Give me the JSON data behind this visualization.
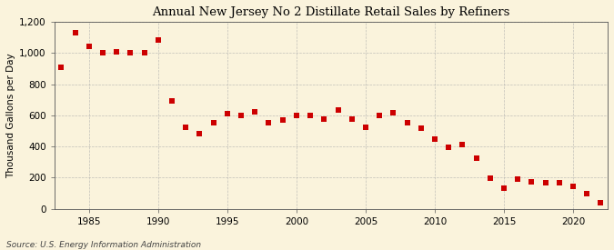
{
  "title": "Annual New Jersey No 2 Distillate Retail Sales by Refiners",
  "ylabel": "Thousand Gallons per Day",
  "source": "Source: U.S. Energy Information Administration",
  "background_color": "#FAF3DC",
  "plot_background_color": "#FAF3DC",
  "marker_color": "#CC0000",
  "marker": "s",
  "marker_size": 4,
  "grid_color": "#AAAAAA",
  "ylim": [
    0,
    1200
  ],
  "yticks": [
    0,
    200,
    400,
    600,
    800,
    1000,
    1200
  ],
  "ytick_labels": [
    "0",
    "200",
    "400",
    "600",
    "800",
    "1,000",
    "1,200"
  ],
  "xticks": [
    1985,
    1990,
    1995,
    2000,
    2005,
    2010,
    2015,
    2020
  ],
  "xlim": [
    1982.5,
    2022.5
  ],
  "years": [
    1983,
    1984,
    1985,
    1986,
    1987,
    1988,
    1989,
    1990,
    1991,
    1992,
    1993,
    1994,
    1995,
    1996,
    1997,
    1998,
    1999,
    2000,
    2001,
    2002,
    2003,
    2004,
    2005,
    2006,
    2007,
    2008,
    2009,
    2010,
    2011,
    2012,
    2013,
    2014,
    2015,
    2016,
    2017,
    2018,
    2019,
    2020,
    2021,
    2022
  ],
  "values": [
    910,
    1130,
    1040,
    1000,
    1005,
    1000,
    1000,
    1080,
    690,
    525,
    480,
    555,
    610,
    600,
    625,
    555,
    570,
    600,
    600,
    575,
    635,
    575,
    525,
    600,
    615,
    555,
    515,
    445,
    395,
    415,
    328,
    195,
    135,
    190,
    175,
    170,
    165,
    145,
    95,
    40
  ],
  "title_fontsize": 9.5,
  "tick_fontsize": 7.5,
  "ylabel_fontsize": 7.5,
  "source_fontsize": 6.5
}
